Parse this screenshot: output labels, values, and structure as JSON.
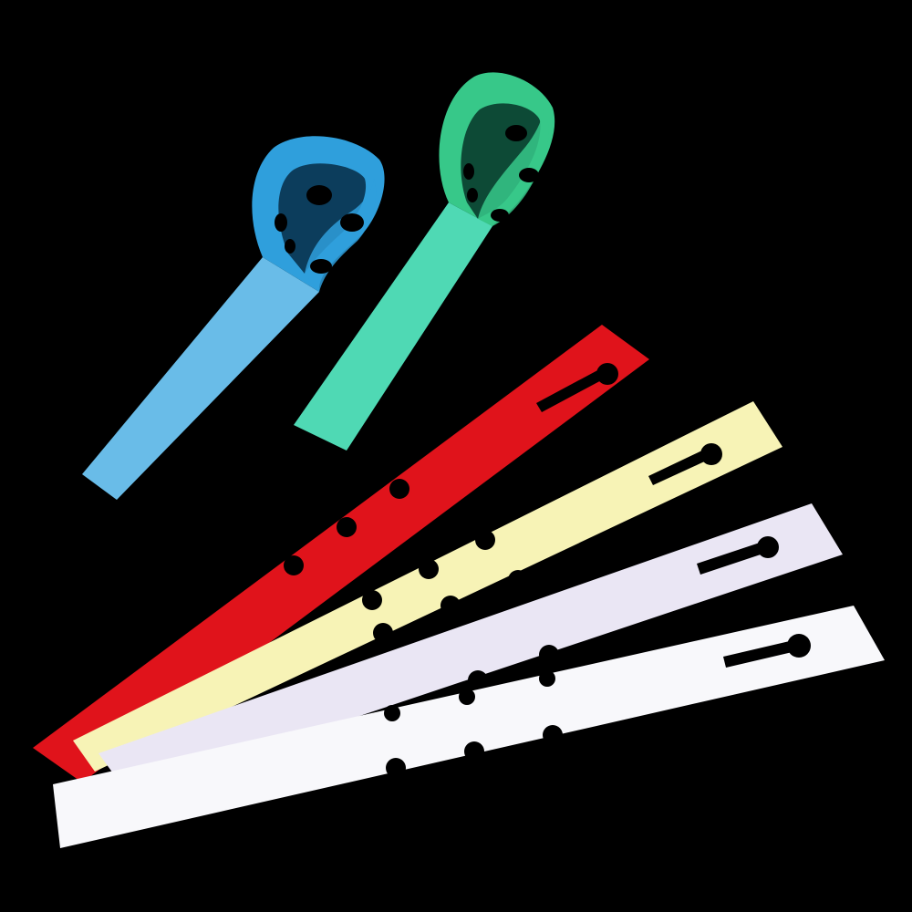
{
  "colors": {
    "background": "#000000",
    "red_tag": "#e0131b",
    "yellow_tag": "#f7f3b6",
    "lavender_tag": "#eae6f4",
    "white_tag": "#f8f8fb",
    "blue_tag": "#69bce8",
    "blue_loop": "#2f9fdc",
    "green_tag": "#4fd9b4",
    "green_loop": "#37c889"
  },
  "tags": [
    {
      "id": "blue-rolled-tag",
      "color_key": "blue_tag",
      "state": "looped"
    },
    {
      "id": "green-rolled-tag",
      "color_key": "green_tag",
      "state": "looped"
    },
    {
      "id": "red-flat-tag",
      "color_key": "red_tag",
      "state": "flat"
    },
    {
      "id": "yellow-flat-tag",
      "color_key": "yellow_tag",
      "state": "flat"
    },
    {
      "id": "lavender-flat-tag",
      "color_key": "lavender_tag",
      "state": "flat"
    },
    {
      "id": "white-flat-tag",
      "color_key": "white_tag",
      "state": "flat"
    }
  ]
}
